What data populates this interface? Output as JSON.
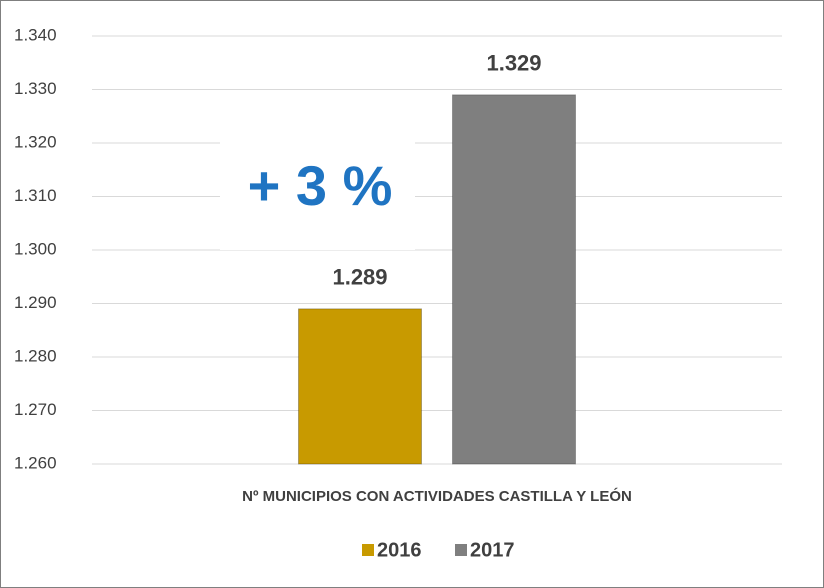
{
  "chart_data": {
    "type": "bar",
    "categories": [
      "Nº MUNICIPIOS CON ACTIVIDADES CASTILLA Y LEÓN"
    ],
    "series": [
      {
        "name": "2016",
        "color": "#c89a00",
        "values": [
          1289
        ],
        "value_labels": [
          "1.289"
        ]
      },
      {
        "name": "2017",
        "color": "#7f7f7f",
        "values": [
          1329
        ],
        "value_labels": [
          "1.329"
        ]
      }
    ],
    "ylim": [
      1260,
      1340
    ],
    "yticks": [
      {
        "value": 1260,
        "label": "1.260"
      },
      {
        "value": 1270,
        "label": "1.270"
      },
      {
        "value": 1280,
        "label": "1.280"
      },
      {
        "value": 1290,
        "label": "1.290"
      },
      {
        "value": 1300,
        "label": "1.300"
      },
      {
        "value": 1310,
        "label": "1.310"
      },
      {
        "value": 1320,
        "label": "1.320"
      },
      {
        "value": 1330,
        "label": "1.330"
      },
      {
        "value": 1340,
        "label": "1.340"
      }
    ],
    "grid": true,
    "legend": "bottom",
    "annotation": "+ 3 %"
  }
}
